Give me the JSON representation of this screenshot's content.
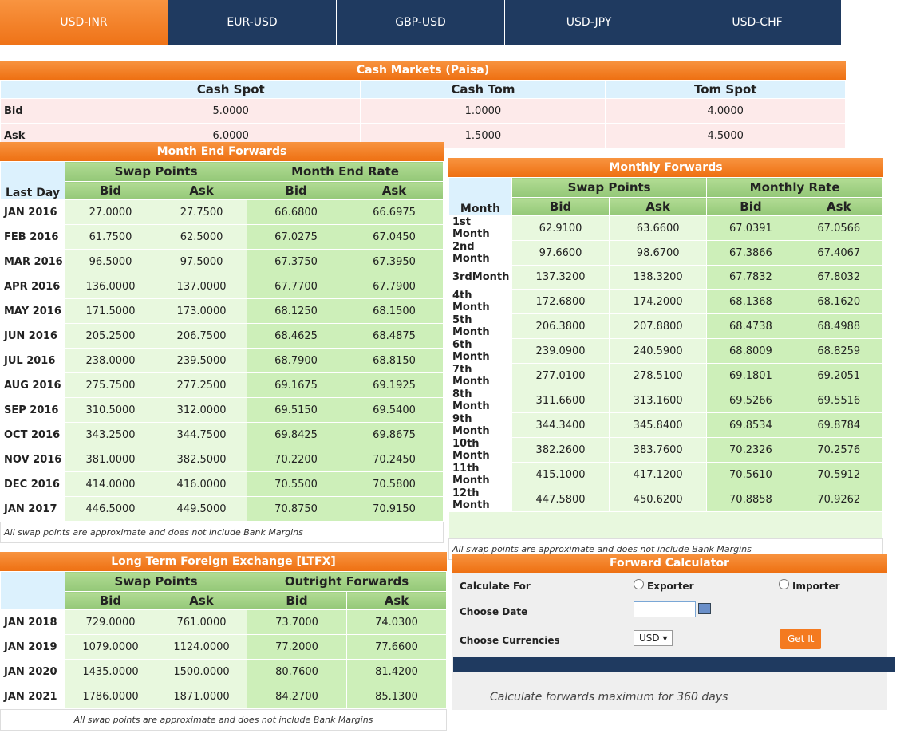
{
  "tabs": [
    "USD-INR",
    "EUR-USD",
    "GBP-USD",
    "USD-JPY",
    "USD-CHF"
  ],
  "cash": {
    "title": "Cash Markets (Paisa)",
    "columns": [
      "Cash Spot",
      "Cash Tom",
      "Tom Spot"
    ],
    "rows": [
      {
        "label": "Bid",
        "values": [
          "5.0000",
          "1.0000",
          "4.0000"
        ]
      },
      {
        "label": "Ask",
        "values": [
          "6.0000",
          "1.5000",
          "4.5000"
        ]
      }
    ]
  },
  "month_end": {
    "title": "Month End Forwards",
    "corner": "Last Day",
    "groups": [
      "Swap Points",
      "Month End Rate"
    ],
    "sub": [
      "Bid",
      "Ask",
      "Bid",
      "Ask"
    ],
    "rows": [
      [
        "JAN 2016",
        "27.0000",
        "27.7500",
        "66.6800",
        "66.6975"
      ],
      [
        "FEB 2016",
        "61.7500",
        "62.5000",
        "67.0275",
        "67.0450"
      ],
      [
        "MAR 2016",
        "96.5000",
        "97.5000",
        "67.3750",
        "67.3950"
      ],
      [
        "APR 2016",
        "136.0000",
        "137.0000",
        "67.7700",
        "67.7900"
      ],
      [
        "MAY 2016",
        "171.5000",
        "173.0000",
        "68.1250",
        "68.1500"
      ],
      [
        "JUN 2016",
        "205.2500",
        "206.7500",
        "68.4625",
        "68.4875"
      ],
      [
        "JUL 2016",
        "238.0000",
        "239.5000",
        "68.7900",
        "68.8150"
      ],
      [
        "AUG 2016",
        "275.7500",
        "277.2500",
        "69.1675",
        "69.1925"
      ],
      [
        "SEP 2016",
        "310.5000",
        "312.0000",
        "69.5150",
        "69.5400"
      ],
      [
        "OCT 2016",
        "343.2500",
        "344.7500",
        "69.8425",
        "69.8675"
      ],
      [
        "NOV 2016",
        "381.0000",
        "382.5000",
        "70.2200",
        "70.2450"
      ],
      [
        "DEC 2016",
        "414.0000",
        "416.0000",
        "70.5500",
        "70.5800"
      ],
      [
        "JAN 2017",
        "446.5000",
        "449.5000",
        "70.8750",
        "70.9150"
      ]
    ],
    "note": "All swap points are approximate and does not include Bank Margins"
  },
  "monthly": {
    "title": "Monthly Forwards",
    "corner": "Month",
    "groups": [
      "Swap Points",
      "Monthly Rate"
    ],
    "sub": [
      "Bid",
      "Ask",
      "Bid",
      "Ask"
    ],
    "rows": [
      [
        "1st Month",
        "62.9100",
        "63.6600",
        "67.0391",
        "67.0566"
      ],
      [
        "2nd Month",
        "97.6600",
        "98.6700",
        "67.3866",
        "67.4067"
      ],
      [
        "3rdMonth",
        "137.3200",
        "138.3200",
        "67.7832",
        "67.8032"
      ],
      [
        "4th Month",
        "172.6800",
        "174.2000",
        "68.1368",
        "68.1620"
      ],
      [
        "5th Month",
        "206.3800",
        "207.8800",
        "68.4738",
        "68.4988"
      ],
      [
        "6th Month",
        "239.0900",
        "240.5900",
        "68.8009",
        "68.8259"
      ],
      [
        "7th Month",
        "277.0100",
        "278.5100",
        "69.1801",
        "69.2051"
      ],
      [
        "8th Month",
        "311.6600",
        "313.1600",
        "69.5266",
        "69.5516"
      ],
      [
        "9th Month",
        "344.3400",
        "345.8400",
        "69.8534",
        "69.8784"
      ],
      [
        "10th Month",
        "382.2600",
        "383.7600",
        "70.2326",
        "70.2576"
      ],
      [
        "11th Month",
        "415.1000",
        "417.1200",
        "70.5610",
        "70.5912"
      ],
      [
        "12th Month",
        "447.5800",
        "450.6200",
        "70.8858",
        "70.9262"
      ]
    ],
    "note": "All swap points are approximate and does not include Bank Margins"
  },
  "ltfx": {
    "title": "Long Term Foreign Exchange [LTFX]",
    "groups": [
      "Swap Points",
      "Outright Forwards"
    ],
    "sub": [
      "Bid",
      "Ask",
      "Bid",
      "Ask"
    ],
    "rows": [
      [
        "JAN 2018",
        "729.0000",
        "761.0000",
        "73.7000",
        "74.0300"
      ],
      [
        "JAN 2019",
        "1079.0000",
        "1124.0000",
        "77.2000",
        "77.6600"
      ],
      [
        "JAN 2020",
        "1435.0000",
        "1500.0000",
        "80.7600",
        "81.4200"
      ],
      [
        "JAN 2021",
        "1786.0000",
        "1871.0000",
        "84.2700",
        "85.1300"
      ]
    ],
    "note": "All swap points are approximate and does not include Bank Margins"
  },
  "calculator": {
    "title": "Forward Calculator",
    "calculate_for": "Calculate For",
    "options": [
      "Exporter",
      "Importer"
    ],
    "choose_date": "Choose Date",
    "choose_currencies": "Choose Currencies",
    "currency": "USD",
    "button": "Get It",
    "note": "Calculate forwards maximum for 360 days"
  }
}
